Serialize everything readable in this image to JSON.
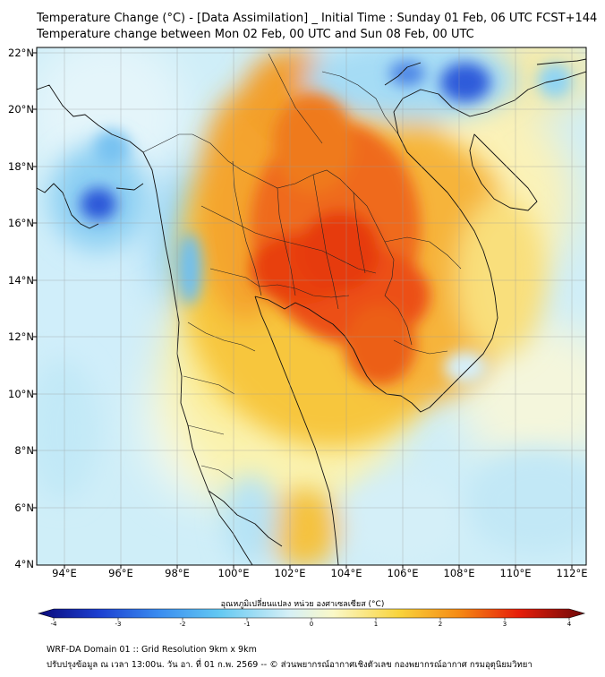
{
  "header": {
    "title_line1": "Temperature Change (°C) - [Data Assimilation] _ Initial Time : Sunday 01 Feb, 06 UTC FCST+144",
    "title_line2": "Temperature change between Mon 02 Feb, 00 UTC and Sun 08 Feb, 00 UTC"
  },
  "map": {
    "lon_range": [
      93,
      112.5
    ],
    "lat_range": [
      4,
      22.2
    ],
    "y_ticks": [
      {
        "lat": 22,
        "label": "22°N"
      },
      {
        "lat": 20,
        "label": "20°N"
      },
      {
        "lat": 18,
        "label": "18°N"
      },
      {
        "lat": 16,
        "label": "16°N"
      },
      {
        "lat": 14,
        "label": "14°N"
      },
      {
        "lat": 12,
        "label": "12°N"
      },
      {
        "lat": 10,
        "label": "10°N"
      },
      {
        "lat": 8,
        "label": "8°N"
      },
      {
        "lat": 6,
        "label": "6°N"
      },
      {
        "lat": 4,
        "label": "4°N"
      }
    ],
    "x_ticks": [
      {
        "lon": 94,
        "label": "94°E"
      },
      {
        "lon": 96,
        "label": "96°E"
      },
      {
        "lon": 98,
        "label": "98°E"
      },
      {
        "lon": 100,
        "label": "100°E"
      },
      {
        "lon": 102,
        "label": "102°E"
      },
      {
        "lon": 104,
        "label": "104°E"
      },
      {
        "lon": 106,
        "label": "106°E"
      },
      {
        "lon": 108,
        "label": "108°E"
      },
      {
        "lon": 110,
        "label": "110°E"
      },
      {
        "lon": 112,
        "label": "112°E"
      }
    ]
  },
  "colorbar": {
    "label": "อุณหภูมิเปลี่ยนแปลง หน่วย องศาเซลเซียส (°C)",
    "min": -4,
    "max": 4,
    "ticks": [
      "-4",
      "-3",
      "-2",
      "-1",
      "0",
      "1",
      "2",
      "3",
      "4"
    ],
    "colors": [
      "#0a0a7a",
      "#1c3fd0",
      "#3a8cf0",
      "#62c8f2",
      "#d6f0f6",
      "#faf8c8",
      "#f9d43c",
      "#f58a14",
      "#e61e0a",
      "#6e0808"
    ]
  },
  "footer": {
    "line1": "WRF-DA Domain 01 :: Grid Resolution 9km x 9km",
    "line2": "ปรับปรุงข้อมูล ณ เวลา 13:00น. วัน อา. ที่ 01 ก.พ. 2569 -- © ส่วนพยากรณ์อากาศเชิงตัวเลข กองพยากรณ์อากาศ กรมอุตุนิยมวิทยา"
  }
}
